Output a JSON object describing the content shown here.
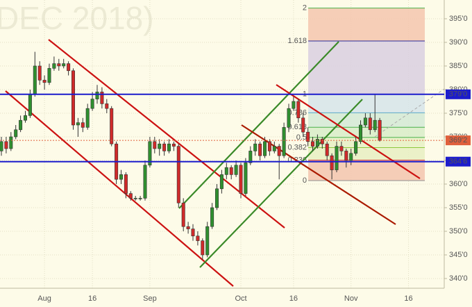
{
  "chart_data": {
    "type": "candlestick",
    "watermark": "DEC 2018)",
    "categories": [
      null,
      null,
      null,
      null,
      null,
      null,
      null,
      null,
      null,
      "Aug",
      null,
      null,
      null,
      null,
      null,
      null,
      null,
      null,
      null,
      "16",
      null,
      null,
      null,
      null,
      null,
      null,
      null,
      null,
      null,
      null,
      null,
      "Sep",
      null,
      null,
      null,
      null,
      null,
      null,
      null,
      null,
      null,
      null,
      null,
      null,
      null,
      null,
      null,
      null,
      null,
      null,
      "Oct",
      null,
      null,
      null,
      null,
      null,
      null,
      null,
      null,
      null,
      null,
      "16",
      null,
      null,
      null,
      null,
      null,
      null,
      null,
      null,
      null,
      null,
      null,
      "Nov",
      null,
      null,
      null,
      null,
      null,
      null,
      null,
      null,
      null,
      null,
      null,
      "16"
    ],
    "open": [
      367,
      369,
      367.5,
      370,
      371.5,
      373.5,
      374.5,
      379,
      385,
      382,
      381.5,
      384.5,
      385.5,
      385,
      385.5,
      384,
      372.5,
      373,
      372,
      376,
      378,
      379.5,
      377,
      376,
      368.5,
      361,
      362,
      358,
      357,
      357,
      357,
      364,
      369,
      367.5,
      368.5,
      367,
      368.5,
      368,
      356,
      351,
      350.5,
      349,
      348,
      345,
      351,
      355,
      359,
      362,
      363.5,
      362,
      364,
      358,
      364.5,
      367,
      368.5,
      366,
      369,
      367,
      368,
      366,
      372,
      376,
      377.5,
      374,
      371,
      369,
      368,
      369.5,
      368.5,
      366,
      363,
      368,
      367,
      365,
      366.5,
      369,
      372.5,
      374,
      371.5,
      373.5,
      null,
      null,
      null,
      null,
      null,
      null
    ],
    "high": [
      370,
      370,
      371,
      372.5,
      374.5,
      375.5,
      380,
      388,
      386,
      383,
      385.5,
      387,
      386.5,
      386.5,
      386,
      384.5,
      374,
      374,
      377,
      379.5,
      381,
      380.5,
      378,
      376.5,
      369,
      363,
      362.5,
      358.5,
      357.5,
      357.5,
      365,
      370,
      370,
      369.5,
      369,
      369.5,
      369,
      368.5,
      357,
      352,
      351.5,
      350,
      348.5,
      352,
      356,
      360,
      363,
      364.5,
      364,
      365,
      364.5,
      365.5,
      368,
      369.5,
      369,
      370,
      369.5,
      369,
      368.5,
      373,
      377,
      378.5,
      378,
      375,
      372,
      370,
      370.5,
      370,
      369,
      366.5,
      369,
      369,
      367.5,
      367.5,
      370,
      373.5,
      375,
      375,
      379,
      374,
      null,
      null,
      null,
      null,
      null,
      null
    ],
    "low": [
      366,
      366.5,
      367,
      369.5,
      371,
      373,
      374,
      378.5,
      381,
      380,
      381,
      384,
      384,
      384.5,
      383,
      371.5,
      370,
      371,
      371.5,
      375.5,
      377,
      376,
      375,
      368,
      360,
      360,
      357,
      356.5,
      356.5,
      356.5,
      356.5,
      363.5,
      366.5,
      366,
      366,
      366.5,
      367,
      355,
      350,
      349.5,
      348,
      347,
      344,
      344.5,
      350.5,
      354.5,
      358,
      361,
      361,
      361.5,
      357,
      357.5,
      364,
      366,
      365,
      365.5,
      366,
      366.5,
      361,
      365.5,
      371,
      375.5,
      373,
      370,
      368,
      367,
      367.5,
      367.5,
      365,
      361,
      362.5,
      366,
      363.5,
      364,
      366,
      368.5,
      372,
      370.5,
      371,
      369,
      null,
      null,
      null,
      null,
      null,
      null
    ],
    "close": [
      369,
      367.5,
      370,
      371.5,
      373.5,
      374.5,
      379,
      385,
      382,
      381.5,
      384.5,
      385.5,
      385,
      385.5,
      384,
      372.5,
      373,
      372,
      376,
      378,
      379.5,
      377,
      376,
      368.5,
      361,
      362,
      358,
      357,
      357,
      357,
      364,
      369,
      367.5,
      368.5,
      367,
      368.5,
      368,
      356,
      351,
      350.5,
      349,
      348,
      345,
      351,
      355,
      359,
      362,
      363.5,
      362,
      364,
      358,
      364.5,
      367,
      368.5,
      366,
      369,
      367,
      368,
      366,
      372,
      376,
      377.5,
      374,
      371,
      369,
      368,
      369.5,
      368.5,
      366,
      363,
      368,
      367,
      365,
      366.5,
      369,
      372.5,
      374,
      371.5,
      373.5,
      369.25,
      null,
      null,
      null,
      null,
      null,
      null
    ],
    "up_color": "#2f8f2f",
    "down_color": "#d02a2a",
    "ylim": [
      337.94,
      398.97
    ],
    "yticks": [
      {
        "value": 340,
        "label": "340'0"
      },
      {
        "value": 345,
        "label": "345'0"
      },
      {
        "value": 350,
        "label": "350'0"
      },
      {
        "value": 355,
        "label": "355'0"
      },
      {
        "value": 360,
        "label": "360'0"
      },
      {
        "value": 365,
        "label": "365'0"
      },
      {
        "value": 370,
        "label": "370'0"
      },
      {
        "value": 375,
        "label": "375'0"
      },
      {
        "value": 380,
        "label": "380'0"
      },
      {
        "value": 385,
        "label": "385'0"
      },
      {
        "value": 390,
        "label": "390'0"
      },
      {
        "value": 395,
        "label": "395'0"
      }
    ],
    "grid": true,
    "levels": [
      {
        "value": 379,
        "label": "379'0",
        "color": "#1c1ccc"
      },
      {
        "value": 364.75,
        "label": "364'6",
        "color": "#1c1ccc"
      }
    ],
    "last_price": {
      "value": 369.25,
      "label": "369'2",
      "color": "#e0603c"
    },
    "fibonacci": {
      "low": 360.74,
      "high": 379,
      "levels": [
        {
          "value": 0,
          "color": "#909090",
          "fill": "#f3c4ae"
        },
        {
          "value": 0.236,
          "color": "#d03030",
          "fill": "#e8efc2"
        },
        {
          "value": 0.382,
          "color": "#8cc83c",
          "fill": "#e6f0c4"
        },
        {
          "value": 0.5,
          "color": "#48b048",
          "fill": "#d8ecc8"
        },
        {
          "value": 0.618,
          "color": "#48b048",
          "fill": "#d4e9d6"
        },
        {
          "value": 0.786,
          "color": "#5aa8c8",
          "fill": "#d6e4ea"
        },
        {
          "value": 1,
          "color": "#909090",
          "fill": "#d9cfe0"
        },
        {
          "value": 1.618,
          "color": "#2a2a9a",
          "fill": "#f4c6ae"
        },
        {
          "value": 2,
          "color": "#48b048",
          "fill": null
        }
      ]
    }
  }
}
